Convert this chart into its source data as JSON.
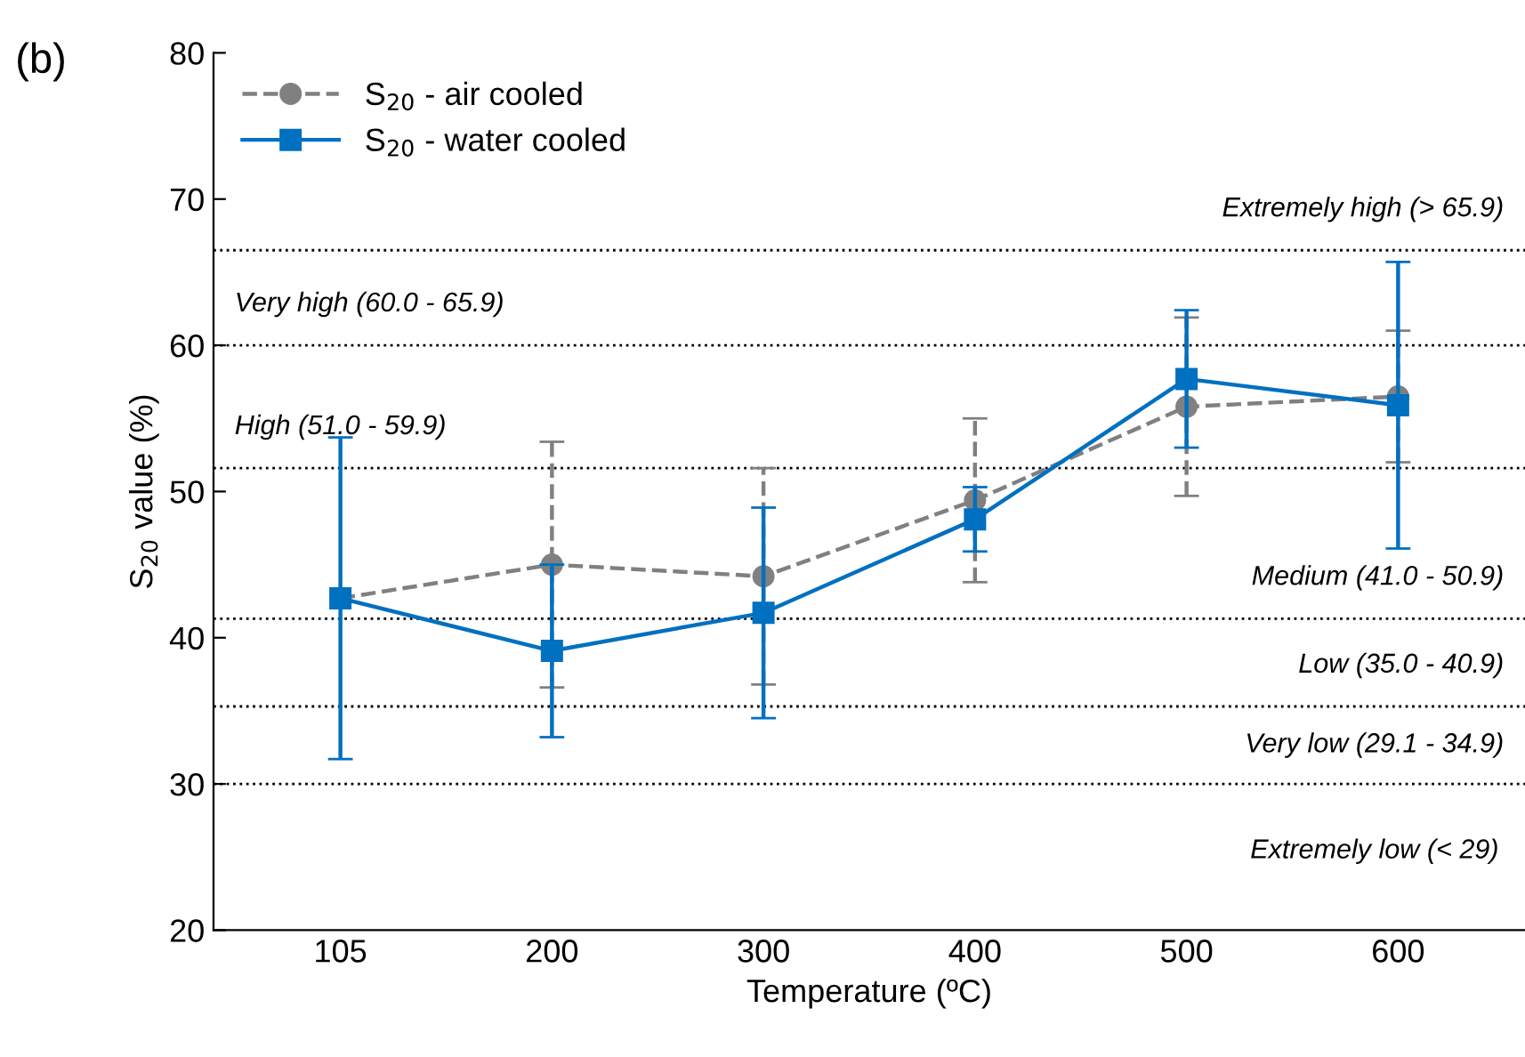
{
  "chart_data": {
    "type": "line",
    "title": "(b)",
    "xlabel": "Temperature (ºC)",
    "ylabel": "S$_{20}$ value (%)",
    "categories": [
      "105",
      "200",
      "300",
      "400",
      "500",
      "600"
    ],
    "series": [
      {
        "name": "S$_{20}$ - air cooled",
        "color": "#808080",
        "marker": "circle",
        "line_style": "dashed",
        "values": [
          42.7,
          45.0,
          44.2,
          49.4,
          55.8,
          56.5
        ],
        "errors": [
          null,
          8.4,
          7.4,
          5.6,
          6.1,
          4.5
        ]
      },
      {
        "name": "S$_{20}$ - water cooled",
        "color": "#0070c0",
        "marker": "square",
        "line_style": "solid",
        "values": [
          42.7,
          39.1,
          41.7,
          48.1,
          57.7,
          55.9
        ],
        "errors": [
          11,
          5.9,
          7.2,
          2.2,
          4.7,
          9.8
        ]
      }
    ],
    "ylim": [
      20,
      80
    ],
    "yticks": [
      20,
      30,
      40,
      50,
      60,
      70,
      80
    ],
    "grid": false,
    "legend": "top left",
    "ref_lines": [
      {
        "axis": "y",
        "value": 66.5,
        "label": "Extremely high (> 65.9)",
        "color": "#000000",
        "line_style": "dotted"
      },
      {
        "axis": "y",
        "value": 60.0,
        "label": "Very high (60.0 - 65.9)",
        "color": "#000000",
        "line_style": "dotted"
      },
      {
        "axis": "y",
        "value": 51.6,
        "label": "High (51.0 - 59.9)",
        "color": "#000000",
        "line_style": "dotted"
      },
      {
        "axis": "y",
        "value": 41.3,
        "label": "Medium (41.0 - 50.9)",
        "color": "#000000",
        "line_style": "dotted"
      },
      {
        "axis": "y",
        "value": 35.3,
        "label": "Low (35.0 - 40.9)",
        "color": "#000000",
        "line_style": "dotted"
      },
      {
        "axis": "y",
        "value": 30.0,
        "label": "Very low (29.1 - 34.9)",
        "color": "#000000",
        "line_style": "dotted"
      }
    ],
    "annotations": [
      "Extremely low (< 29)"
    ]
  }
}
